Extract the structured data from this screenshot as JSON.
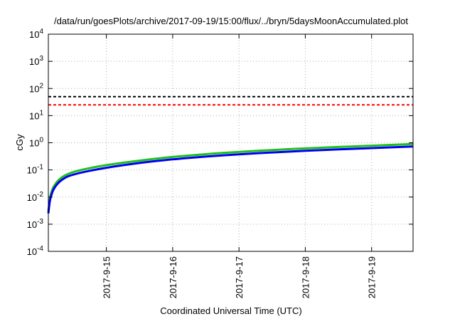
{
  "chart_data": {
    "type": "line",
    "title": "/data/run/goesPlots/archive/2017-09-19/15:00/flux/../bryn/5daysMoonAccumulated.plot",
    "xlabel": "Coordinated Universal Time (UTC)",
    "ylabel": "cGy",
    "y_scale": "log",
    "ylim": [
      0.0001,
      10000
    ],
    "xlim": [
      "2017-09-14 03:00",
      "2017-09-19 15:00"
    ],
    "x_ticks": [
      "2017-9-15",
      "2017-9-16",
      "2017-9-17",
      "2017-9-18",
      "2017-9-19"
    ],
    "y_ticks": [
      {
        "base": "10",
        "exp": "-4",
        "value": 0.0001
      },
      {
        "base": "10",
        "exp": "-3",
        "value": 0.001
      },
      {
        "base": "10",
        "exp": "-2",
        "value": 0.01
      },
      {
        "base": "10",
        "exp": "-1",
        "value": 0.1
      },
      {
        "base": "10",
        "exp": "0",
        "value": 1
      },
      {
        "base": "10",
        "exp": "1",
        "value": 10
      },
      {
        "base": "10",
        "exp": "2",
        "value": 100
      },
      {
        "base": "10",
        "exp": "3",
        "value": 1000
      },
      {
        "base": "10",
        "exp": "4",
        "value": 10000
      }
    ],
    "grid": true,
    "series": [
      {
        "color": "#1fbf1f",
        "style": "solid",
        "x": [
          "2017-09-14 03:00",
          "2017-09-14 03:30",
          "2017-09-14 04:00",
          "2017-09-14 05:00",
          "2017-09-14 07:00",
          "2017-09-14 10:00",
          "2017-09-14 15:00",
          "2017-09-15 00:00",
          "2017-09-15 12:00",
          "2017-09-16 00:00",
          "2017-09-16 12:00",
          "2017-09-17 00:00",
          "2017-09-17 12:00",
          "2017-09-18 00:00",
          "2017-09-18 12:00",
          "2017-09-19 00:00",
          "2017-09-19 15:00"
        ],
        "y": [
          0.003,
          0.008,
          0.014,
          0.025,
          0.045,
          0.07,
          0.1,
          0.15,
          0.22,
          0.3,
          0.38,
          0.46,
          0.54,
          0.62,
          0.7,
          0.78,
          0.9
        ]
      },
      {
        "color": "#0000ee",
        "style": "solid",
        "x": [
          "2017-09-14 03:00",
          "2017-09-14 03:30",
          "2017-09-14 04:00",
          "2017-09-14 05:00",
          "2017-09-14 07:00",
          "2017-09-14 10:00",
          "2017-09-14 15:00",
          "2017-09-15 00:00",
          "2017-09-15 12:00",
          "2017-09-16 00:00",
          "2017-09-16 12:00",
          "2017-09-17 00:00",
          "2017-09-17 12:00",
          "2017-09-18 00:00",
          "2017-09-18 12:00",
          "2017-09-19 00:00",
          "2017-09-19 15:00"
        ],
        "y": [
          0.0025,
          0.0065,
          0.011,
          0.02,
          0.036,
          0.057,
          0.08,
          0.12,
          0.18,
          0.245,
          0.31,
          0.375,
          0.44,
          0.505,
          0.57,
          0.635,
          0.73
        ]
      },
      {
        "color": "#000000",
        "style": "dashed",
        "x": [
          "2017-09-14 03:00",
          "2017-09-19 15:00"
        ],
        "y": [
          50,
          50
        ]
      },
      {
        "color": "#ff0000",
        "style": "dashed",
        "x": [
          "2017-09-14 03:00",
          "2017-09-19 15:00"
        ],
        "y": [
          25,
          25
        ]
      }
    ]
  }
}
